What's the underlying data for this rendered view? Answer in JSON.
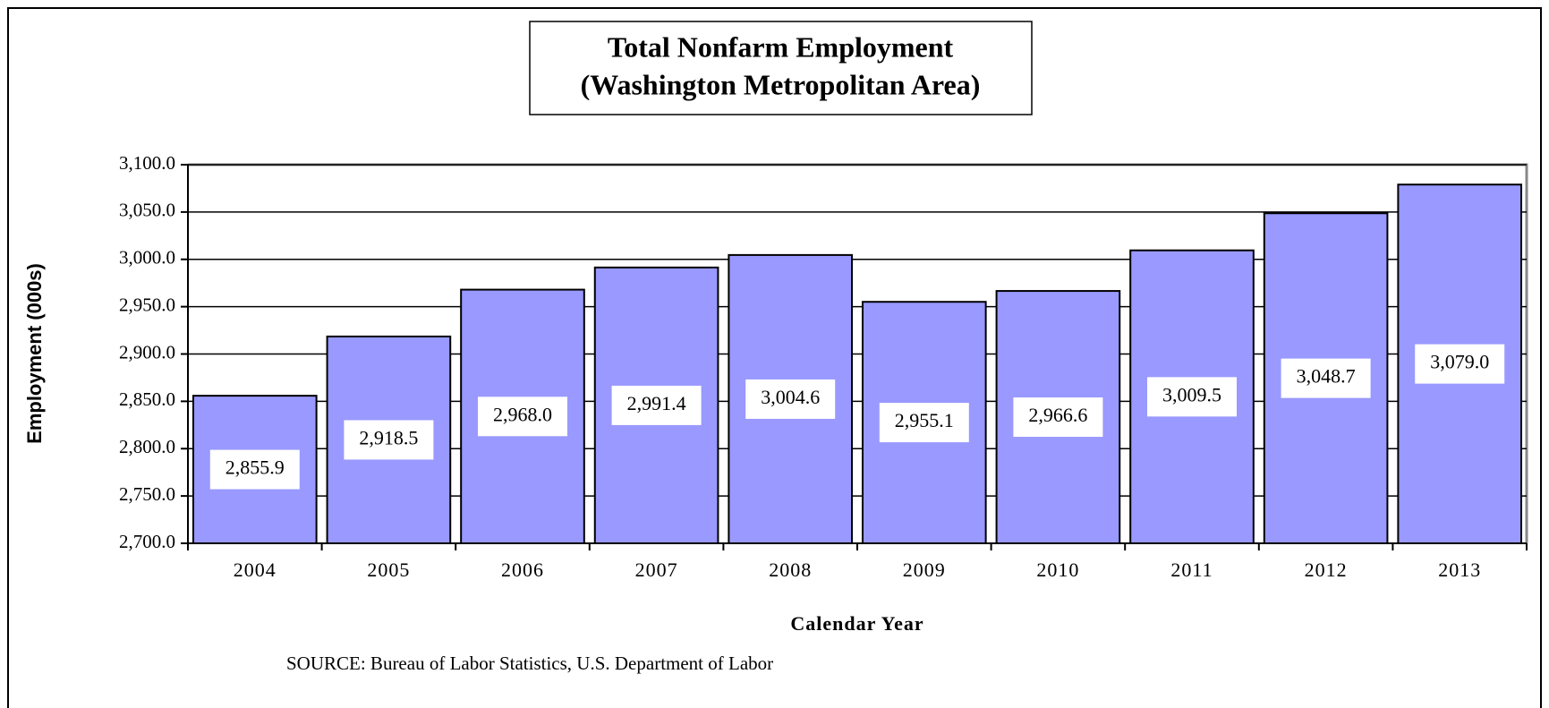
{
  "chart_data": {
    "type": "bar",
    "title": "Total Nonfarm Employment",
    "subtitle": "(Washington Metropolitan Area)",
    "y_label": "Employment (000s)",
    "x_label": "Calendar Year",
    "source": "SOURCE:  Bureau of Labor Statistics, U.S. Department of Labor",
    "categories": [
      "2004",
      "2005",
      "2006",
      "2007",
      "2008",
      "2009",
      "2010",
      "2011",
      "2012",
      "2013"
    ],
    "values": [
      2855.9,
      2918.5,
      2968.0,
      2991.4,
      3004.6,
      2955.1,
      2966.6,
      3009.5,
      3048.7,
      3079.0
    ],
    "value_labels": [
      "2,855.9",
      "2,918.5",
      "2,968.0",
      "2,991.4",
      "3,004.6",
      "2,955.1",
      "2,966.6",
      "3,009.5",
      "3,048.7",
      "3,079.0"
    ],
    "color": "#9999ff",
    "ylim": [
      2700,
      3100
    ],
    "yticks": [
      {
        "value": 2700,
        "label": "2,700.0"
      },
      {
        "value": 2750,
        "label": "2,750.0"
      },
      {
        "value": 2800,
        "label": "2,800.0"
      },
      {
        "value": 2850,
        "label": "2,850.0"
      },
      {
        "value": 2900,
        "label": "2,900.0"
      },
      {
        "value": 2950,
        "label": "2,950.0"
      },
      {
        "value": 3000,
        "label": "3,000.0"
      },
      {
        "value": 3050,
        "label": "3,050.0"
      },
      {
        "value": 3100,
        "label": "3,100.0"
      }
    ],
    "grid": true
  }
}
